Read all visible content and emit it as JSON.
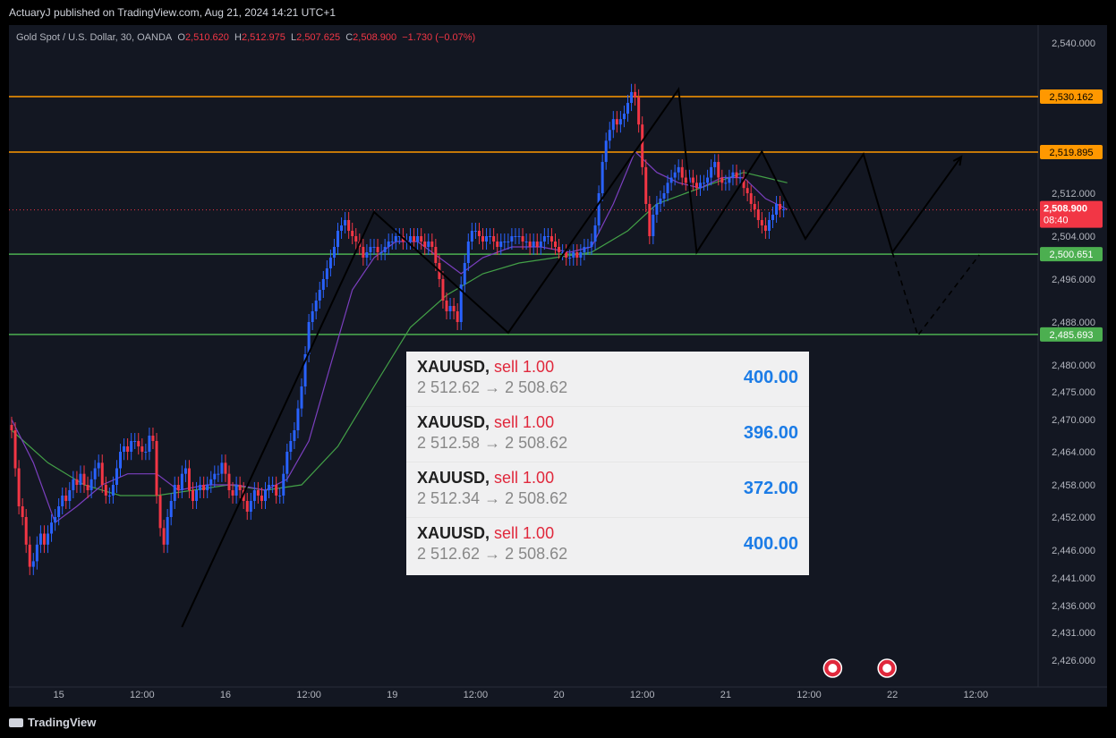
{
  "header": {
    "publish_note": "ActuaryJ published on TradingView.com, Aug 21, 2024 14:21 UTC+1"
  },
  "legend": {
    "symbol": "Gold Spot / U.S. Dollar, 30, OANDA",
    "open_label": "O",
    "open": "2,510.620",
    "high_label": "H",
    "high": "2,512.975",
    "low_label": "L",
    "low": "2,507.625",
    "close_label": "C",
    "close": "2,508.900",
    "change": "−1.730 (−0.07%)"
  },
  "colors": {
    "background": "#131722",
    "bull": "#2962ff",
    "bear": "#f23645",
    "resistance": "#ff9800",
    "support": "#4caf50",
    "ma_fast": "#7b3fbf",
    "ma_slow": "#43a047"
  },
  "chart_data": {
    "type": "candlestick",
    "title": "Gold Spot / U.S. Dollar, 30, OANDA",
    "y_ticks": [
      "2,540.000",
      "2,512.000",
      "2,504.000",
      "2,496.000",
      "2,488.000",
      "2,480.000",
      "2,475.000",
      "2,470.000",
      "2,464.000",
      "2,458.000",
      "2,452.000",
      "2,446.000",
      "2,441.000",
      "2,436.000",
      "2,431.000",
      "2,426.000"
    ],
    "x_ticks": [
      {
        "label": "15",
        "bar": 13
      },
      {
        "label": "12:00",
        "bar": 36
      },
      {
        "label": "16",
        "bar": 59
      },
      {
        "label": "12:00",
        "bar": 82
      },
      {
        "label": "19",
        "bar": 105
      },
      {
        "label": "12:00",
        "bar": 128
      },
      {
        "label": "20",
        "bar": 151
      },
      {
        "label": "12:00",
        "bar": 174
      },
      {
        "label": "21",
        "bar": 197
      },
      {
        "label": "12:00",
        "bar": 220
      },
      {
        "label": "22",
        "bar": 243
      },
      {
        "label": "12:00",
        "bar": 266
      }
    ],
    "price_levels": [
      {
        "value": 2530.162,
        "label": "2,530.162",
        "color": "#ff9800"
      },
      {
        "value": 2519.895,
        "label": "2,519.895",
        "color": "#ff9800"
      },
      {
        "value": 2500.651,
        "label": "2,500.651",
        "color": "#4caf50"
      },
      {
        "value": 2485.693,
        "label": "2,485.693",
        "color": "#4caf50"
      }
    ],
    "current_price": {
      "value": 2508.9,
      "label": "2,508.900",
      "countdown": "08:40"
    },
    "pattern_path": [
      [
        47,
        2432.0
      ],
      [
        100,
        2508.5
      ],
      [
        137,
        2486.0
      ],
      [
        184,
        2531.5
      ],
      [
        189,
        2501.0
      ],
      [
        207,
        2520.0
      ],
      [
        219,
        2503.5
      ],
      [
        235,
        2519.5
      ],
      [
        243,
        2501.0
      ],
      [
        262,
        2519.0
      ]
    ],
    "projection_path": [
      [
        243,
        2501.0
      ],
      [
        250,
        2485.5
      ],
      [
        267,
        2500.5
      ]
    ],
    "close_by_bar": [
      [
        0,
        2468
      ],
      [
        1,
        2461
      ],
      [
        2,
        2454
      ],
      [
        3,
        2452
      ],
      [
        4,
        2447
      ],
      [
        5,
        2443
      ],
      [
        6,
        2444
      ],
      [
        7,
        2447
      ],
      [
        8,
        2449
      ],
      [
        9,
        2447
      ],
      [
        10,
        2449
      ],
      [
        11,
        2451
      ],
      [
        12,
        2452
      ],
      [
        13,
        2454
      ],
      [
        14,
        2456
      ],
      [
        15,
        2455
      ],
      [
        16,
        2457
      ],
      [
        17,
        2459
      ],
      [
        18,
        2458
      ],
      [
        19,
        2460
      ],
      [
        20,
        2458
      ],
      [
        21,
        2457
      ],
      [
        22,
        2459
      ],
      [
        23,
        2461
      ],
      [
        24,
        2462
      ],
      [
        25,
        2458
      ],
      [
        26,
        2456
      ],
      [
        27,
        2456
      ],
      [
        28,
        2458
      ],
      [
        29,
        2461
      ],
      [
        30,
        2464
      ],
      [
        31,
        2465
      ],
      [
        32,
        2464
      ],
      [
        33,
        2466
      ],
      [
        34,
        2466
      ],
      [
        35,
        2465
      ],
      [
        36,
        2464
      ],
      [
        37,
        2464
      ],
      [
        38,
        2467
      ],
      [
        39,
        2466
      ],
      [
        40,
        2456
      ],
      [
        41,
        2450
      ],
      [
        42,
        2447
      ],
      [
        43,
        2452
      ],
      [
        44,
        2455
      ],
      [
        45,
        2458
      ],
      [
        46,
        2457
      ],
      [
        47,
        2460
      ],
      [
        48,
        2461
      ],
      [
        49,
        2457
      ],
      [
        50,
        2455
      ],
      [
        51,
        2457
      ],
      [
        52,
        2458
      ],
      [
        53,
        2457
      ],
      [
        54,
        2458
      ],
      [
        55,
        2459
      ],
      [
        56,
        2460
      ],
      [
        57,
        2460
      ],
      [
        58,
        2462
      ],
      [
        59,
        2460
      ],
      [
        60,
        2457
      ],
      [
        61,
        2456
      ],
      [
        62,
        2458
      ],
      [
        63,
        2457
      ],
      [
        64,
        2455
      ],
      [
        65,
        2453
      ],
      [
        66,
        2455
      ],
      [
        67,
        2457
      ],
      [
        68,
        2456
      ],
      [
        69,
        2455
      ],
      [
        70,
        2457
      ],
      [
        71,
        2458
      ],
      [
        72,
        2458
      ],
      [
        73,
        2456
      ],
      [
        74,
        2456
      ],
      [
        75,
        2460
      ],
      [
        76,
        2464
      ],
      [
        77,
        2466
      ],
      [
        78,
        2468
      ],
      [
        79,
        2472
      ],
      [
        80,
        2476
      ],
      [
        81,
        2482
      ],
      [
        82,
        2488
      ],
      [
        83,
        2490
      ],
      [
        84,
        2492
      ],
      [
        85,
        2494
      ],
      [
        86,
        2496
      ],
      [
        87,
        2498
      ],
      [
        88,
        2500
      ],
      [
        89,
        2502
      ],
      [
        90,
        2505
      ],
      [
        91,
        2506
      ],
      [
        92,
        2507
      ],
      [
        93,
        2505
      ],
      [
        94,
        2504
      ],
      [
        95,
        2503
      ],
      [
        96,
        2502
      ],
      [
        97,
        2500
      ],
      [
        98,
        2501
      ],
      [
        99,
        2502
      ],
      [
        100,
        2502
      ],
      [
        101,
        2501
      ],
      [
        102,
        2501
      ],
      [
        103,
        2502
      ],
      [
        104,
        2503
      ],
      [
        105,
        2503
      ],
      [
        106,
        2504
      ],
      [
        107,
        2504
      ],
      [
        108,
        2503
      ],
      [
        109,
        2503
      ],
      [
        110,
        2504
      ],
      [
        111,
        2503
      ],
      [
        112,
        2504
      ],
      [
        113,
        2503
      ],
      [
        114,
        2502
      ],
      [
        115,
        2503
      ],
      [
        116,
        2502
      ],
      [
        117,
        2499
      ],
      [
        118,
        2496
      ],
      [
        119,
        2492
      ],
      [
        120,
        2490
      ],
      [
        121,
        2491
      ],
      [
        122,
        2490
      ],
      [
        123,
        2488
      ],
      [
        124,
        2495
      ],
      [
        125,
        2499
      ],
      [
        126,
        2503
      ],
      [
        127,
        2505
      ],
      [
        128,
        2505
      ],
      [
        129,
        2504
      ],
      [
        130,
        2503
      ],
      [
        131,
        2504
      ],
      [
        132,
        2504
      ],
      [
        133,
        2503
      ],
      [
        134,
        2502
      ],
      [
        135,
        2503
      ],
      [
        136,
        2503
      ],
      [
        137,
        2503
      ],
      [
        138,
        2504
      ],
      [
        139,
        2504
      ],
      [
        140,
        2504
      ],
      [
        141,
        2503
      ],
      [
        142,
        2503
      ],
      [
        143,
        2502
      ],
      [
        144,
        2503
      ],
      [
        145,
        2502
      ],
      [
        146,
        2503
      ],
      [
        147,
        2504
      ],
      [
        148,
        2504
      ],
      [
        149,
        2503
      ],
      [
        150,
        2502
      ],
      [
        151,
        2501
      ],
      [
        152,
        2501
      ],
      [
        153,
        2500
      ],
      [
        154,
        2500
      ],
      [
        155,
        2501
      ],
      [
        156,
        2500
      ],
      [
        157,
        2501
      ],
      [
        158,
        2502
      ],
      [
        159,
        2502
      ],
      [
        160,
        2503
      ],
      [
        161,
        2506
      ],
      [
        162,
        2512
      ],
      [
        163,
        2518
      ],
      [
        164,
        2522
      ],
      [
        165,
        2524
      ],
      [
        166,
        2526
      ],
      [
        167,
        2525
      ],
      [
        168,
        2526
      ],
      [
        169,
        2527
      ],
      [
        170,
        2529
      ],
      [
        171,
        2531
      ],
      [
        172,
        2530
      ],
      [
        173,
        2525
      ],
      [
        174,
        2517
      ],
      [
        175,
        2510
      ],
      [
        176,
        2504
      ],
      [
        177,
        2508
      ],
      [
        178,
        2510
      ],
      [
        179,
        2511
      ],
      [
        180,
        2512
      ],
      [
        181,
        2514
      ],
      [
        182,
        2515
      ],
      [
        183,
        2516
      ],
      [
        184,
        2517
      ],
      [
        185,
        2515
      ],
      [
        186,
        2514
      ],
      [
        187,
        2515
      ],
      [
        188,
        2514
      ],
      [
        189,
        2513
      ],
      [
        190,
        2514
      ],
      [
        191,
        2514
      ],
      [
        192,
        2515
      ],
      [
        193,
        2517
      ],
      [
        194,
        2518
      ],
      [
        195,
        2515
      ],
      [
        196,
        2514
      ],
      [
        197,
        2514
      ],
      [
        198,
        2515
      ],
      [
        199,
        2516
      ],
      [
        200,
        2515
      ],
      [
        201,
        2515
      ],
      [
        202,
        2513
      ],
      [
        203,
        2512
      ],
      [
        204,
        2510
      ],
      [
        205,
        2509
      ],
      [
        206,
        2507
      ],
      [
        207,
        2506
      ],
      [
        208,
        2505
      ],
      [
        209,
        2507
      ],
      [
        210,
        2508
      ],
      [
        211,
        2510
      ],
      [
        212,
        2509
      ],
      [
        213,
        2509
      ]
    ],
    "ma_fast": [
      [
        0,
        2470
      ],
      [
        6,
        2462
      ],
      [
        12,
        2451
      ],
      [
        18,
        2454
      ],
      [
        25,
        2458
      ],
      [
        32,
        2460
      ],
      [
        40,
        2460
      ],
      [
        46,
        2457
      ],
      [
        54,
        2458
      ],
      [
        62,
        2458
      ],
      [
        70,
        2457
      ],
      [
        76,
        2459
      ],
      [
        82,
        2466
      ],
      [
        88,
        2480
      ],
      [
        94,
        2494
      ],
      [
        100,
        2500
      ],
      [
        106,
        2503
      ],
      [
        112,
        2503
      ],
      [
        118,
        2500
      ],
      [
        124,
        2497
      ],
      [
        130,
        2500
      ],
      [
        138,
        2502
      ],
      [
        146,
        2502
      ],
      [
        154,
        2501
      ],
      [
        160,
        2502
      ],
      [
        166,
        2510
      ],
      [
        172,
        2520
      ],
      [
        178,
        2516
      ],
      [
        184,
        2514
      ],
      [
        190,
        2513
      ],
      [
        196,
        2515
      ],
      [
        202,
        2515
      ],
      [
        208,
        2511
      ],
      [
        214,
        2509
      ]
    ],
    "ma_slow": [
      [
        0,
        2468
      ],
      [
        10,
        2462
      ],
      [
        20,
        2458
      ],
      [
        30,
        2456
      ],
      [
        40,
        2456
      ],
      [
        50,
        2457
      ],
      [
        60,
        2458
      ],
      [
        70,
        2457
      ],
      [
        80,
        2458
      ],
      [
        90,
        2465
      ],
      [
        100,
        2476
      ],
      [
        110,
        2487
      ],
      [
        120,
        2493
      ],
      [
        130,
        2497
      ],
      [
        140,
        2499
      ],
      [
        150,
        2500
      ],
      [
        160,
        2501
      ],
      [
        170,
        2505
      ],
      [
        178,
        2510
      ],
      [
        186,
        2512
      ],
      [
        194,
        2514
      ],
      [
        202,
        2516
      ],
      [
        208,
        2515
      ],
      [
        214,
        2514
      ]
    ]
  },
  "trades": [
    {
      "symbol": "XAUUSD,",
      "side": "sell 1.00",
      "prices": "2 512.62 → 2 508.62",
      "profit": "400.00"
    },
    {
      "symbol": "XAUUSD,",
      "side": "sell 1.00",
      "prices": "2 512.58 → 2 508.62",
      "profit": "396.00"
    },
    {
      "symbol": "XAUUSD,",
      "side": "sell 1.00",
      "prices": "2 512.34 → 2 508.62",
      "profit": "372.00"
    },
    {
      "symbol": "XAUUSD,",
      "side": "sell 1.00",
      "prices": "2 512.62 → 2 508.62",
      "profit": "400.00"
    }
  ],
  "footer": {
    "brand": "TradingView"
  }
}
